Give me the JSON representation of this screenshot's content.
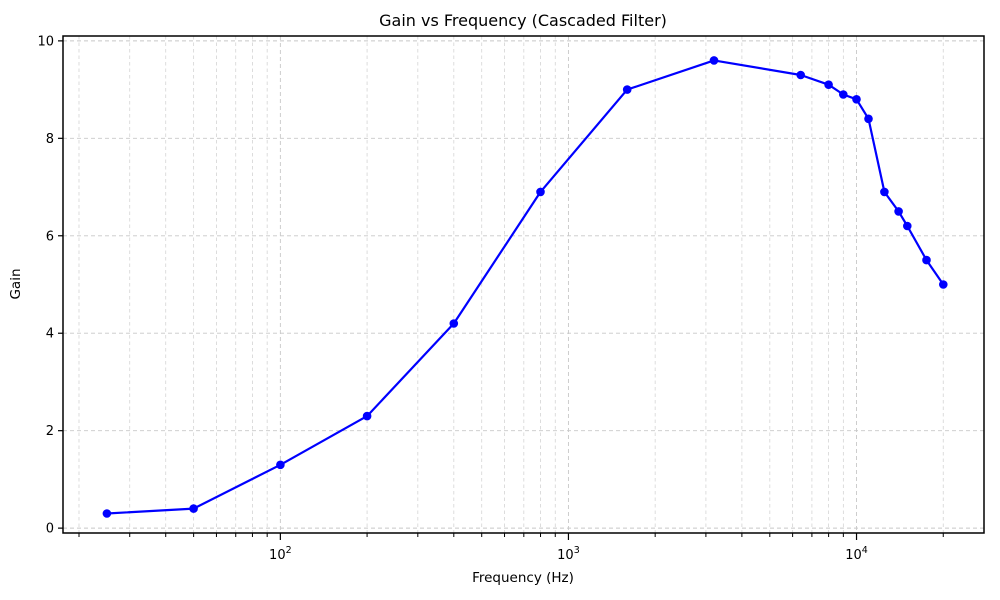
{
  "chart_data": {
    "type": "line",
    "title": "Gain vs Frequency (Cascaded Filter)",
    "xlabel": "Frequency (Hz)",
    "ylabel": "Gain",
    "x_scale": "log",
    "y_scale": "linear",
    "x": [
      25,
      50,
      100,
      200,
      400,
      800,
      1600,
      3200,
      6400,
      8000,
      9000,
      10000,
      11000,
      12500,
      14000,
      15000,
      17500,
      20000
    ],
    "y": [
      0.3,
      0.4,
      1.3,
      2.3,
      4.2,
      6.9,
      9.0,
      9.6,
      9.3,
      9.1,
      8.9,
      8.8,
      8.4,
      6.9,
      6.5,
      6.2,
      5.5,
      5.0
    ],
    "xlim": [
      17.6,
      27700
    ],
    "ylim": [
      -0.1,
      10.1
    ],
    "y_ticks": [
      "0",
      "2",
      "4",
      "6",
      "8",
      "10"
    ],
    "y_tick_values": [
      0,
      2,
      4,
      6,
      8,
      10
    ],
    "x_major_tick_values": [
      100,
      1000,
      10000
    ],
    "x_tick_labels": [
      "10^2",
      "10^3",
      "10^4"
    ],
    "grid": {
      "which": "both",
      "style": "dashed",
      "on": true
    },
    "legend": "none",
    "colors": {
      "line": "#0000ff",
      "marker": "#0000ff",
      "grid_major": "#c8c8c8",
      "grid_minor": "#d4d4d4",
      "spine": "#000000",
      "background": "#ffffff"
    }
  }
}
